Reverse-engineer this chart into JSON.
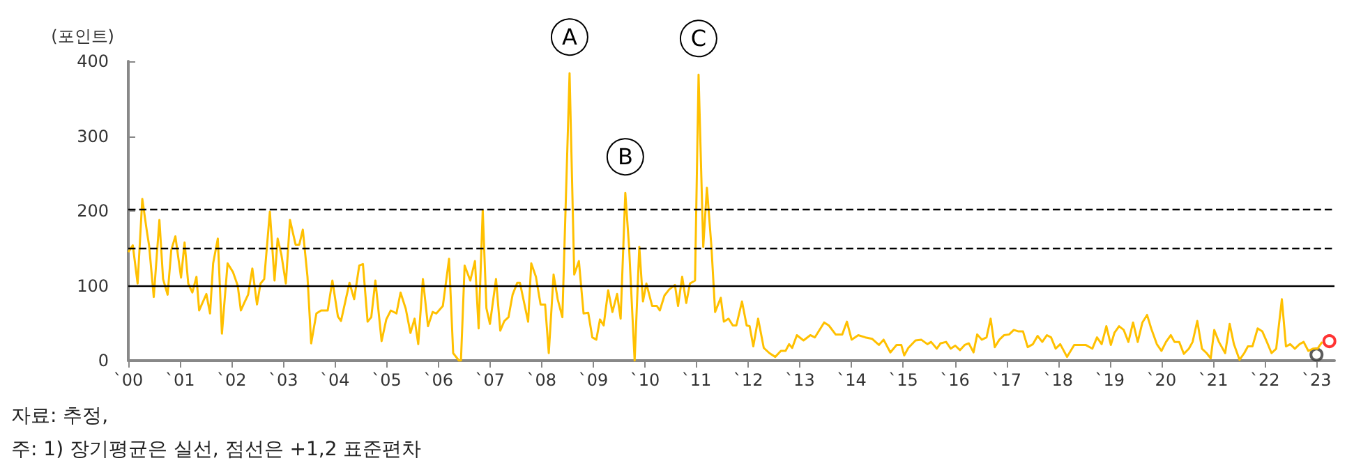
{
  "chart_data": {
    "type": "line",
    "ylabel": "(포인트)",
    "annotations": [
      {
        "text": "A",
        "x": "2008-07-17",
        "y": 384
      },
      {
        "text": "B",
        "x": "2009-08-15",
        "y": 224
      },
      {
        "text": "C",
        "x": "2011-01-15",
        "y": 382
      },
      "자료: 추정,",
      "주: 1) 장기평균은 실선, 점선은 +1,2 표준편차"
    ],
    "series": [
      {
        "color": "#ffc000",
        "x": [
          "2000-01-01",
          "2000-02-02",
          "2000-03-07",
          "2000-04-09",
          "2000-05-12",
          "2000-05-27",
          "2000-06-29",
          "2000-08-08",
          "2000-09-03",
          "2000-10-05",
          "2000-10-31",
          "2000-11-29",
          "2001-01-08",
          "2001-02-02",
          "2001-02-28",
          "2001-03-29",
          "2001-04-27",
          "2001-05-16",
          "2001-07-06",
          "2001-08-01",
          "2001-08-23",
          "2001-09-25",
          "2001-10-24",
          "2001-12-03",
          "2002-01-11",
          "2002-02-13",
          "2002-03-07",
          "2002-04-02",
          "2002-04-27",
          "2002-05-27",
          "2002-06-29",
          "2002-07-24",
          "2002-08-19",
          "2002-09-28",
          "2002-10-31",
          "2002-11-22",
          "2002-12-18",
          "2003-01-19",
          "2003-02-17",
          "2003-03-29",
          "2003-04-24",
          "2003-05-19",
          "2003-06-21",
          "2003-07-17",
          "2003-08-23",
          "2003-09-25",
          "2003-11-11",
          "2003-12-14",
          "2004-01-22",
          "2004-02-13",
          "2004-03-18",
          "2004-04-13",
          "2004-05-16",
          "2004-06-21",
          "2004-07-17",
          "2004-08-19",
          "2004-09-14",
          "2004-10-13",
          "2004-11-26",
          "2004-12-29",
          "2005-01-30",
          "2005-03-11",
          "2005-04-09",
          "2005-05-16",
          "2005-06-18",
          "2005-07-17",
          "2005-08-12",
          "2005-09-14",
          "2005-10-20",
          "2005-11-22",
          "2005-12-18",
          "2006-02-02",
          "2006-03-18",
          "2006-04-16",
          "2006-05-27",
          "2006-06-10",
          "2006-07-06",
          "2006-08-15",
          "2006-09-17",
          "2006-10-13",
          "2006-11-11",
          "2006-12-07",
          "2007-01-01",
          "2007-02-13",
          "2007-03-15",
          "2007-04-13",
          "2007-05-12",
          "2007-06-10",
          "2007-07-13",
          "2007-08-01",
          "2007-09-28",
          "2007-10-20",
          "2007-11-22",
          "2007-12-25",
          "2008-01-26",
          "2008-02-21",
          "2008-03-26",
          "2008-04-24",
          "2008-05-27",
          "2008-07-17",
          "2008-08-19",
          "2008-09-21",
          "2008-10-24",
          "2008-11-26",
          "2008-12-25",
          "2009-01-22",
          "2009-02-17",
          "2009-03-15",
          "2009-04-16",
          "2009-05-16",
          "2009-06-18",
          "2009-07-13",
          "2009-08-15",
          "2009-09-10",
          "2009-10-20",
          "2009-11-22",
          "2009-12-18",
          "2010-01-11",
          "2010-02-21",
          "2010-03-26",
          "2010-04-16",
          "2010-05-19",
          "2010-06-21",
          "2010-08-01",
          "2010-08-23",
          "2010-09-21",
          "2010-10-20",
          "2010-11-15",
          "2010-12-21",
          "2011-01-15",
          "2011-02-17",
          "2011-03-15",
          "2011-04-16",
          "2011-05-12",
          "2011-06-21",
          "2011-07-13",
          "2011-08-15",
          "2011-09-14",
          "2011-10-09",
          "2011-11-18",
          "2011-12-21",
          "2012-01-11",
          "2012-02-06",
          "2012-03-11",
          "2012-04-20",
          "2012-05-30",
          "2012-07-10",
          "2012-08-19",
          "2012-09-21",
          "2012-10-16",
          "2012-11-07",
          "2012-12-10",
          "2013-01-26",
          "2013-03-15",
          "2013-04-16",
          "2013-06-21",
          "2013-07-24",
          "2013-09-10",
          "2013-10-27",
          "2013-11-29",
          "2014-01-01",
          "2014-02-17",
          "2014-04-09",
          "2014-05-27",
          "2014-07-13",
          "2014-08-15",
          "2014-10-02",
          "2014-11-15",
          "2014-12-18",
          "2015-01-08",
          "2015-02-06",
          "2015-03-29",
          "2015-05-08",
          "2015-06-21",
          "2015-07-17",
          "2015-08-26",
          "2015-09-21",
          "2015-10-31",
          "2015-12-03",
          "2016-01-04",
          "2016-02-06",
          "2016-03-11",
          "2016-04-09",
          "2016-05-12",
          "2016-06-07",
          "2016-07-10",
          "2016-08-12",
          "2016-09-10",
          "2016-10-09",
          "2016-11-11",
          "2016-12-14",
          "2017-01-19",
          "2017-02-21",
          "2017-03-26",
          "2017-04-27",
          "2017-05-30",
          "2017-07-06",
          "2017-08-08",
          "2017-09-10",
          "2017-10-13",
          "2017-11-11",
          "2017-12-14",
          "2018-01-15",
          "2018-03-04",
          "2018-04-24",
          "2018-07-13",
          "2018-08-30",
          "2018-10-02",
          "2018-11-04",
          "2018-12-07",
          "2019-01-08",
          "2019-02-02",
          "2019-03-07",
          "2019-04-09",
          "2019-05-12",
          "2019-06-14",
          "2019-07-17",
          "2019-08-19",
          "2019-09-21",
          "2019-10-20",
          "2019-11-29",
          "2020-01-01",
          "2020-02-02",
          "2020-03-07",
          "2020-04-02",
          "2020-05-05",
          "2020-06-07",
          "2020-07-13",
          "2020-08-08",
          "2020-09-10",
          "2020-10-13",
          "2020-11-15",
          "2020-12-14",
          "2021-01-08",
          "2021-02-10",
          "2021-03-26",
          "2021-04-27",
          "2021-05-27",
          "2021-07-06",
          "2021-08-08",
          "2021-09-03",
          "2021-10-05",
          "2021-11-11",
          "2021-12-14",
          "2022-01-15",
          "2022-02-17",
          "2022-03-22",
          "2022-05-01",
          "2022-05-30",
          "2022-06-29",
          "2022-08-01",
          "2022-09-03",
          "2022-10-02",
          "2022-11-04",
          "2022-12-07",
          "2023-01-08",
          "2023-02-10"
        ],
        "values": [
          145,
          154,
          103,
          216,
          172,
          154,
          85,
          188,
          109,
          88,
          148,
          166,
          111,
          158,
          103,
          91,
          112,
          67,
          89,
          63,
          130,
          163,
          36,
          130,
          118,
          100,
          67,
          78,
          88,
          123,
          75,
          103,
          109,
          199,
          107,
          163,
          142,
          103,
          188,
          155,
          155,
          175,
          112,
          23,
          63,
          67,
          67,
          107,
          59,
          53,
          82,
          104,
          82,
          127,
          129,
          52,
          58,
          107,
          26,
          55,
          67,
          63,
          91,
          69,
          37,
          56,
          22,
          109,
          46,
          65,
          63,
          73,
          136,
          10,
          0,
          0,
          127,
          107,
          133,
          43,
          201,
          70,
          49,
          109,
          40,
          53,
          58,
          88,
          104,
          104,
          52,
          130,
          112,
          75,
          75,
          10,
          115,
          82,
          58,
          384,
          115,
          133,
          63,
          64,
          31,
          28,
          55,
          47,
          94,
          65,
          89,
          56,
          224,
          154,
          0,
          152,
          79,
          103,
          73,
          73,
          67,
          87,
          95,
          101,
          73,
          112,
          77,
          103,
          107,
          382,
          152,
          231,
          152,
          65,
          84,
          52,
          56,
          47,
          47,
          79,
          47,
          46,
          19,
          56,
          17,
          10,
          5,
          13,
          13,
          22,
          17,
          34,
          27,
          34,
          31,
          51,
          47,
          35,
          35,
          52,
          28,
          34,
          31,
          29,
          21,
          28,
          11,
          21,
          21,
          7,
          17,
          27,
          28,
          22,
          25,
          16,
          23,
          25,
          16,
          20,
          14,
          21,
          23,
          11,
          35,
          28,
          31,
          56,
          18,
          28,
          34,
          35,
          41,
          39,
          39,
          18,
          22,
          33,
          25,
          34,
          31,
          16,
          22,
          5,
          21,
          21,
          16,
          31,
          22,
          46,
          21,
          37,
          46,
          41,
          25,
          51,
          25,
          51,
          61,
          43,
          22,
          13,
          25,
          34,
          25,
          25,
          9,
          16,
          25,
          53,
          16,
          10,
          3,
          41,
          25,
          10,
          49,
          22,
          1,
          10,
          19,
          19,
          43,
          39,
          25,
          10,
          16,
          82,
          19,
          22,
          16,
          22,
          25,
          13,
          16,
          16,
          25
        ]
      },
      {
        "type": "scatter",
        "color": "#333333",
        "marker": "circle",
        "x": [
          "2023-01-01"
        ],
        "values": [
          8
        ]
      },
      {
        "type": "scatter",
        "color": "#ff0000",
        "marker": "circle",
        "x": [
          "2023-04-02"
        ],
        "values": [
          26
        ]
      }
    ],
    "xlim": [
      "2000-01-01",
      "2023-05-08"
    ],
    "xticks": [
      {
        "value": "2000",
        "label": "`00"
      },
      {
        "value": "2001",
        "label": "`01"
      },
      {
        "value": "2002",
        "label": "`02"
      },
      {
        "value": "2003",
        "label": "`03"
      },
      {
        "value": "2004",
        "label": "`04"
      },
      {
        "value": "2005",
        "label": "`05"
      },
      {
        "value": "2006",
        "label": "`06"
      },
      {
        "value": "2007",
        "label": "`07"
      },
      {
        "value": "2008",
        "label": "`08"
      },
      {
        "value": "2009",
        "label": "`09"
      },
      {
        "value": "2010",
        "label": "`10"
      },
      {
        "value": "2011",
        "label": "`11"
      },
      {
        "value": "2012",
        "label": "`12"
      },
      {
        "value": "2013",
        "label": "`13"
      },
      {
        "value": "2014",
        "label": "`14"
      },
      {
        "value": "2015",
        "label": "`15"
      },
      {
        "value": "2016",
        "label": "`16"
      },
      {
        "value": "2017",
        "label": "`17"
      },
      {
        "value": "2018",
        "label": "`18"
      },
      {
        "value": "2019",
        "label": "`19"
      },
      {
        "value": "2020",
        "label": "`20"
      },
      {
        "value": "2021",
        "label": "`21"
      },
      {
        "value": "2022",
        "label": "`22"
      },
      {
        "value": "2023",
        "label": "`23"
      }
    ],
    "ylim": [
      0,
      400
    ],
    "yticks": [
      0,
      100,
      200,
      300,
      400
    ],
    "ref_lines": [
      {
        "axis": "y",
        "value": 100,
        "color": "#000000",
        "line_style": "solid"
      },
      {
        "axis": "y",
        "value": 150,
        "color": "#000000",
        "line_style": "dashed"
      },
      {
        "axis": "y",
        "value": 203,
        "color": "#000000",
        "line_style": "dashed"
      }
    ],
    "grid": false,
    "marker": "none",
    "line_style": "solid"
  }
}
